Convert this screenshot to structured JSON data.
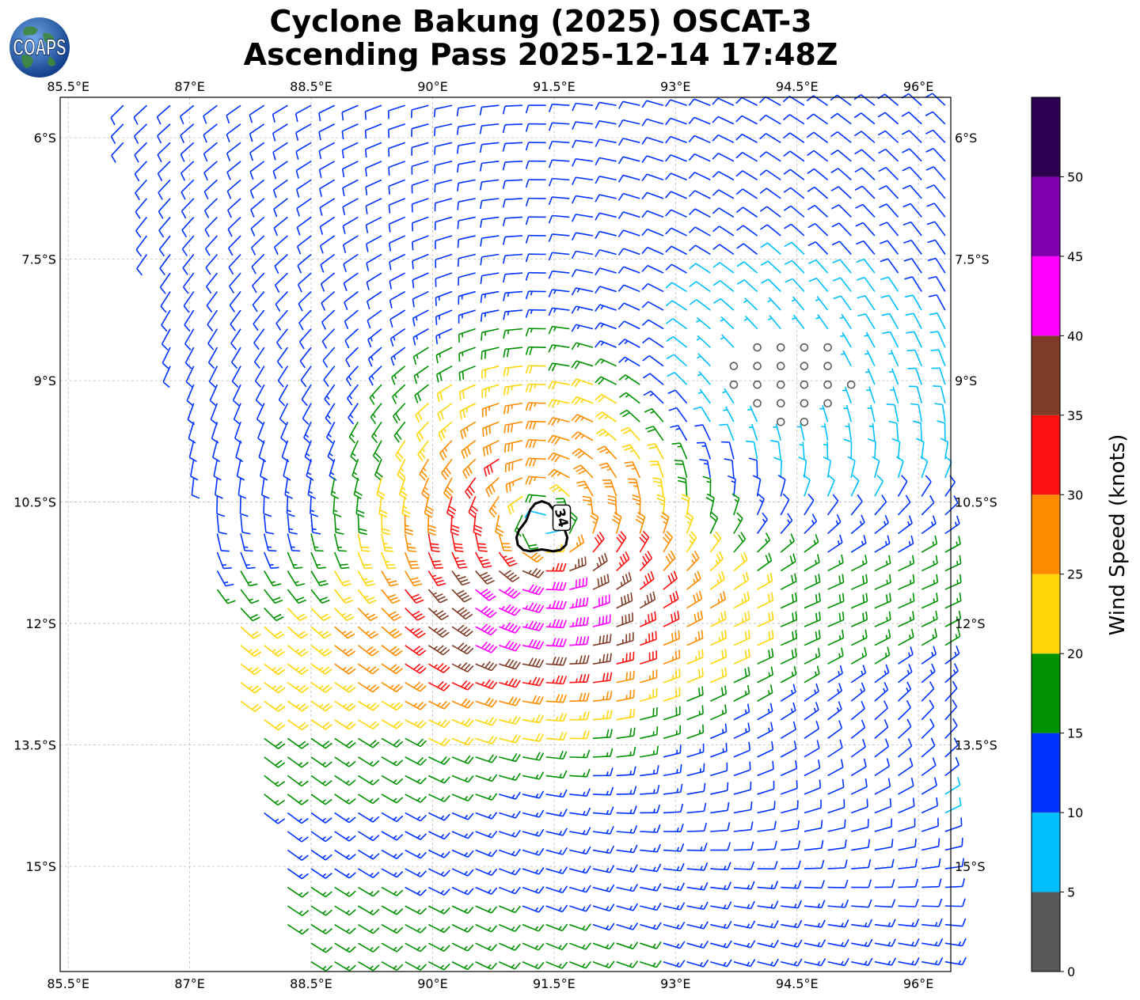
{
  "title": {
    "line1": "Cyclone Bakung (2025) OSCAT-3",
    "line2": "Ascending Pass 2025-12-14 17:48Z"
  },
  "logo": {
    "text": "COAPS",
    "icon": "globe-logo-icon"
  },
  "map": {
    "lon_range": [
      85.4,
      96.4
    ],
    "lat_range": [
      -16.3,
      -5.5
    ],
    "lon_ticks": [
      "85.5°E",
      "87°E",
      "88.5°E",
      "90°E",
      "91.5°E",
      "93°E",
      "94.5°E",
      "96°E"
    ],
    "lon_tick_values": [
      85.5,
      87,
      88.5,
      90,
      91.5,
      93,
      94.5,
      96
    ],
    "lat_ticks": [
      "6°S",
      "7.5°S",
      "9°S",
      "10.5°S",
      "12°S",
      "13.5°S",
      "15°S"
    ],
    "lat_tick_values": [
      -6,
      -7.5,
      -9,
      -10.5,
      -12,
      -13.5,
      -15
    ],
    "grid": true,
    "storm_center": {
      "lon": 91.35,
      "lat": -10.85
    },
    "contour_34kt": {
      "label": "34",
      "color": "#000000"
    },
    "symbol": "wind-barb"
  },
  "colorbar": {
    "label": "Wind Speed (knots)",
    "ticks": [
      "0",
      "5",
      "10",
      "15",
      "20",
      "25",
      "30",
      "35",
      "40",
      "45",
      "50"
    ],
    "bins": [
      {
        "min": 0,
        "max": 5,
        "color": "#595959"
      },
      {
        "min": 5,
        "max": 10,
        "color": "#00bfff"
      },
      {
        "min": 10,
        "max": 15,
        "color": "#0033ff"
      },
      {
        "min": 15,
        "max": 20,
        "color": "#009100"
      },
      {
        "min": 20,
        "max": 25,
        "color": "#ffd60a"
      },
      {
        "min": 25,
        "max": 30,
        "color": "#ff8c00"
      },
      {
        "min": 30,
        "max": 35,
        "color": "#ff1010"
      },
      {
        "min": 35,
        "max": 40,
        "color": "#7f3c26"
      },
      {
        "min": 40,
        "max": 45,
        "color": "#ff00ff"
      },
      {
        "min": 45,
        "max": 50,
        "color": "#8000b0"
      },
      {
        "min": 50,
        "max": 55,
        "color": "#2b0050"
      }
    ]
  }
}
